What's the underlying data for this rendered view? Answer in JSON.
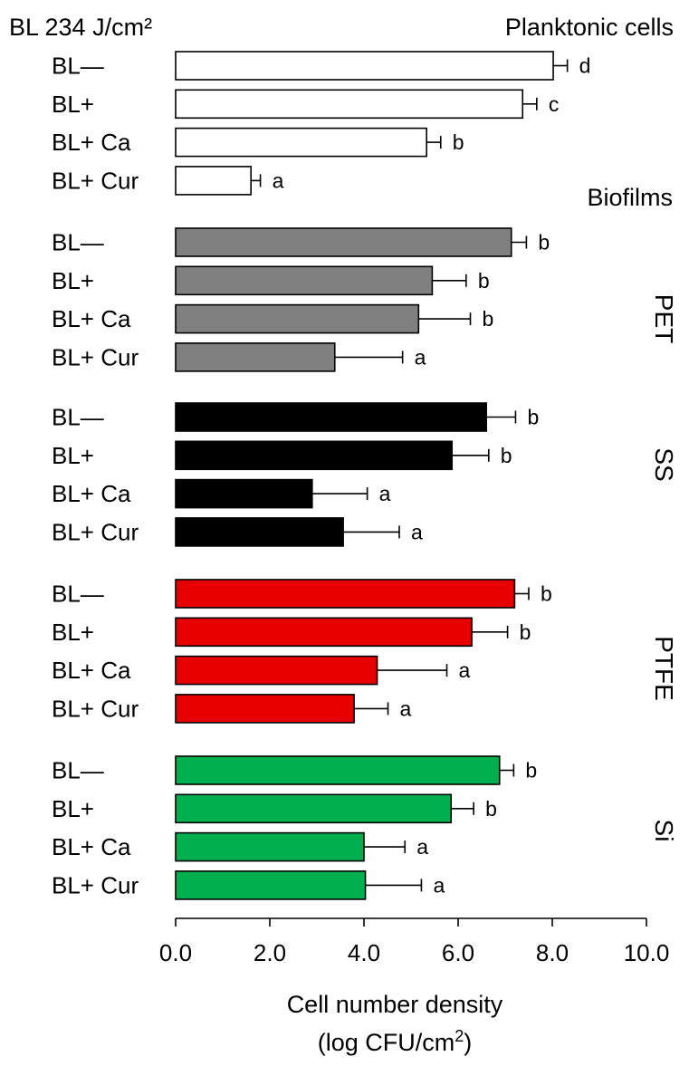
{
  "chart_data": {
    "type": "bar",
    "orientation": "horizontal",
    "title": "BL 234 J/cm²",
    "xlabel": "Cell number density",
    "xlabel_unit": "(log CFU/cm",
    "xlabel_unit_sup": "2",
    "xlabel_unit_close": ")",
    "xlim": [
      0,
      10
    ],
    "xticks": [
      "0.0",
      "2.0",
      "4.0",
      "6.0",
      "8.0",
      "10.0"
    ],
    "xtick_values": [
      0,
      2,
      4,
      6,
      8,
      10
    ],
    "grid": false,
    "groups": [
      {
        "label": "Planktonic cells",
        "label_position": "top-right",
        "color": "#ffffff",
        "categories": [
          "BL—",
          "BL+",
          "BL+ Ca",
          "BL+ Cur"
        ],
        "values": [
          8.02,
          7.37,
          5.33,
          1.6
        ],
        "errors": [
          0.3,
          0.3,
          0.3,
          0.2
        ],
        "letters": [
          "d",
          "c",
          "b",
          "a"
        ]
      },
      {
        "label": "PET",
        "label_position": "right-rotated",
        "header": "Biofilms",
        "color": "#808080",
        "categories": [
          "BL—",
          "BL+",
          "BL+ Ca",
          "BL+ Cur"
        ],
        "values": [
          7.13,
          5.45,
          5.16,
          3.38
        ],
        "errors": [
          0.32,
          0.72,
          1.1,
          1.44
        ],
        "letters": [
          "b",
          "b",
          "b",
          "a"
        ]
      },
      {
        "label": "SS",
        "label_position": "right-rotated",
        "color": "#000000",
        "categories": [
          "BL—",
          "BL+",
          "BL+ Ca",
          "BL+ Cur"
        ],
        "values": [
          6.6,
          5.87,
          2.9,
          3.56
        ],
        "errors": [
          0.62,
          0.78,
          1.17,
          1.19
        ],
        "letters": [
          "b",
          "b",
          "a",
          "a"
        ]
      },
      {
        "label": "PTFE",
        "label_position": "right-rotated",
        "color": "#e60000",
        "categories": [
          "BL—",
          "BL+",
          "BL+ Ca",
          "BL+ Cur"
        ],
        "values": [
          7.2,
          6.29,
          4.28,
          3.79
        ],
        "errors": [
          0.3,
          0.76,
          1.48,
          0.72
        ],
        "letters": [
          "b",
          "b",
          "a",
          "a"
        ]
      },
      {
        "label": "Si",
        "label_position": "right-rotated",
        "color": "#00b04f",
        "categories": [
          "BL—",
          "BL+",
          "BL+ Ca",
          "BL+ Cur"
        ],
        "values": [
          6.88,
          5.85,
          4.0,
          4.03
        ],
        "errors": [
          0.3,
          0.48,
          0.87,
          1.19
        ],
        "letters": [
          "b",
          "b",
          "a",
          "a"
        ]
      }
    ]
  }
}
